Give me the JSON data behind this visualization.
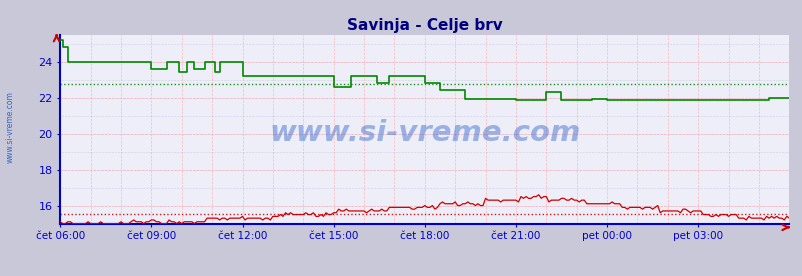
{
  "title": "Savinja - Celje brv",
  "bg_color": "#c8c8d8",
  "plot_bg_color": "#eeeef8",
  "ylim": [
    15.0,
    25.5
  ],
  "yticks": [
    16,
    18,
    20,
    22,
    24
  ],
  "xlabel_times": [
    "čet 06:00",
    "čet 09:00",
    "čet 12:00",
    "čet 15:00",
    "čet 18:00",
    "čet 21:00",
    "pet 00:00",
    "pet 03:00"
  ],
  "n_points": 289,
  "temp_avg": 15.55,
  "pretok_avg": 22.75,
  "title_color": "#000080",
  "axis_label_color": "#0000cc",
  "grid_color_red": "#ffaaaa",
  "grid_color_blue": "#aaaadd",
  "temp_color": "#cc0000",
  "pretok_color": "#008800",
  "watermark": "www.si-vreme.com",
  "watermark_color": "#3366cc",
  "left_label": "www.si-vreme.com",
  "left_label_color": "#3366cc"
}
